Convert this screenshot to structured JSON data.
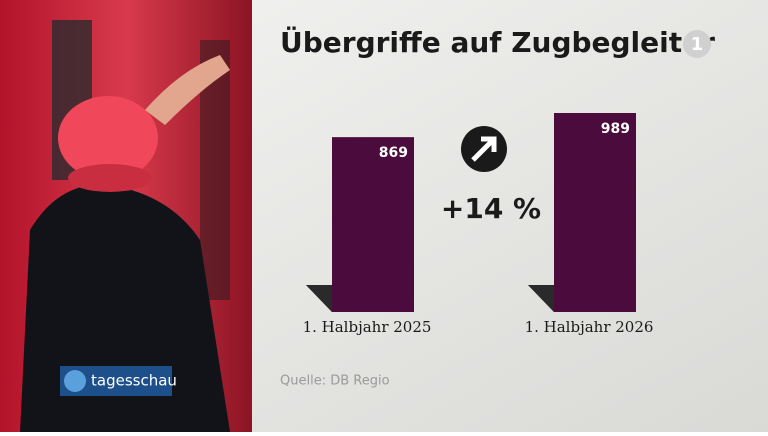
{
  "chart_data": {
    "type": "bar",
    "title": "Übergriffe auf Zugbegleiter",
    "categories": [
      "1. Halbjahr 2025",
      "1. Halbjahr 2026"
    ],
    "values": [
      869,
      989
    ],
    "color": "#4b0b3c",
    "annotation": "+14 %",
    "source": "Quelle: DB Regio"
  },
  "channel_logo": "1",
  "brand": "tagesschau"
}
